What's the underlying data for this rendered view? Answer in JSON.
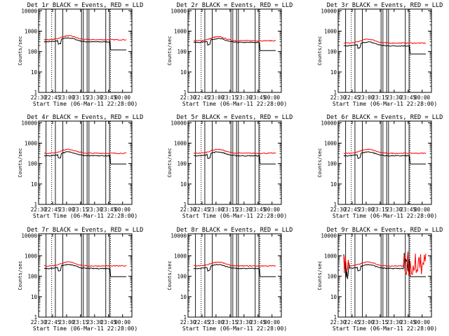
{
  "figure": {
    "x_tick_labels": [
      "22:30",
      "22:45",
      "23:00",
      "23:15",
      "23:30",
      "23:45",
      "00:00"
    ],
    "y_tick_labels": [
      "1",
      "10",
      "100",
      "1000",
      "10000"
    ],
    "xlabel": "Start Time (06-Mar-11 22:28:00)",
    "ylabel": "Counts/sec",
    "colors": {
      "events": "#000000",
      "lld": "#ff0000",
      "axes": "#000000"
    }
  },
  "chart_data": [
    {
      "type": "line",
      "title": "Det 1r BLACK = Events, RED = LLD",
      "xlim": [
        "22:30",
        "00:10"
      ],
      "ylim": [
        1,
        12000
      ],
      "y_scale": "log",
      "series": [
        {
          "key": "events",
          "base": 300,
          "noisy": false
        },
        {
          "key": "lld",
          "base": 380,
          "noisy": false
        }
      ]
    },
    {
      "type": "line",
      "title": "Det 2r BLACK = Events, RED = LLD",
      "xlim": [
        "22:30",
        "00:10"
      ],
      "ylim": [
        1,
        12000
      ],
      "y_scale": "log",
      "series": [
        {
          "key": "events",
          "base": 280,
          "noisy": false
        },
        {
          "key": "lld",
          "base": 340,
          "noisy": false
        }
      ]
    },
    {
      "type": "line",
      "title": "Det 3r BLACK = Events, RED = LLD",
      "xlim": [
        "22:30",
        "00:10"
      ],
      "ylim": [
        1,
        12000
      ],
      "y_scale": "log",
      "series": [
        {
          "key": "events",
          "base": 190,
          "noisy": false
        },
        {
          "key": "lld",
          "base": 260,
          "noisy": false
        }
      ]
    },
    {
      "type": "line",
      "title": "Det 4r BLACK = Events, RED = LLD",
      "xlim": [
        "22:30",
        "00:10"
      ],
      "ylim": [
        1,
        12000
      ],
      "y_scale": "log",
      "series": [
        {
          "key": "events",
          "base": 240,
          "noisy": false
        },
        {
          "key": "lld",
          "base": 320,
          "noisy": false
        }
      ]
    },
    {
      "type": "line",
      "title": "Det 5r BLACK = Events, RED = LLD",
      "xlim": [
        "22:30",
        "00:10"
      ],
      "ylim": [
        1,
        12000
      ],
      "y_scale": "log",
      "series": [
        {
          "key": "events",
          "base": 240,
          "noisy": false
        },
        {
          "key": "lld",
          "base": 320,
          "noisy": false
        }
      ]
    },
    {
      "type": "line",
      "title": "Det 6r BLACK = Events, RED = LLD",
      "xlim": [
        "22:30",
        "00:10"
      ],
      "ylim": [
        1,
        12000
      ],
      "y_scale": "log",
      "series": [
        {
          "key": "events",
          "base": 240,
          "noisy": false
        },
        {
          "key": "lld",
          "base": 320,
          "noisy": false
        }
      ]
    },
    {
      "type": "line",
      "title": "Det 7r BLACK = Events, RED = LLD",
      "xlim": [
        "22:30",
        "00:10"
      ],
      "ylim": [
        1,
        12000
      ],
      "y_scale": "log",
      "series": [
        {
          "key": "events",
          "base": 240,
          "noisy": false
        },
        {
          "key": "lld",
          "base": 320,
          "noisy": false
        }
      ]
    },
    {
      "type": "line",
      "title": "Det 8r BLACK = Events, RED = LLD",
      "xlim": [
        "22:30",
        "00:10"
      ],
      "ylim": [
        1,
        12000
      ],
      "y_scale": "log",
      "series": [
        {
          "key": "events",
          "base": 240,
          "noisy": false
        },
        {
          "key": "lld",
          "base": 320,
          "noisy": false
        }
      ]
    },
    {
      "type": "line",
      "title": "Det 9r BLACK = Events, RED = LLD",
      "xlim": [
        "22:30",
        "00:10"
      ],
      "ylim": [
        1,
        12000
      ],
      "y_scale": "log",
      "series": [
        {
          "key": "events",
          "base": 240,
          "noisy": true
        },
        {
          "key": "lld",
          "base": 320,
          "noisy": true
        }
      ]
    }
  ]
}
